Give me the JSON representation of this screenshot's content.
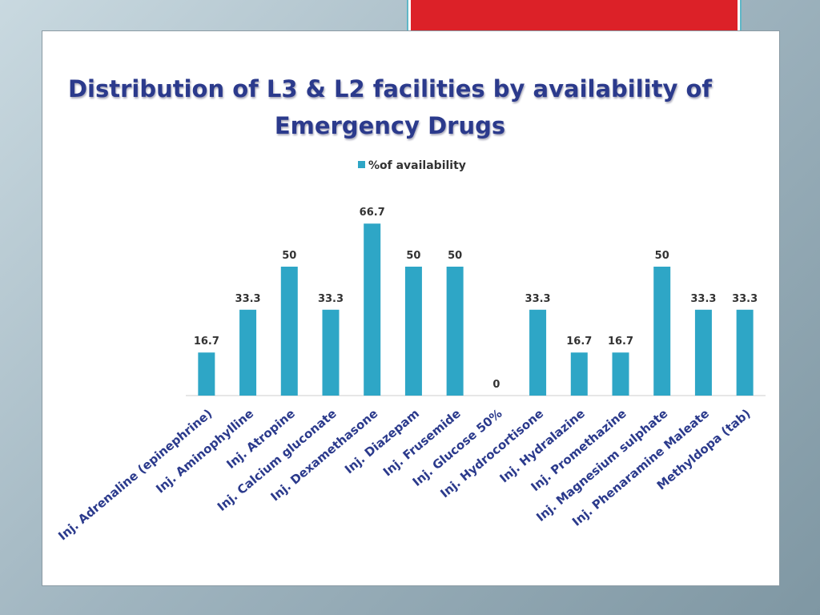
{
  "chart_data": {
    "type": "bar",
    "title": "Distribution of L3 & L2 facilities by availability of Emergency Drugs",
    "categories": [
      "Inj. Adrenaline (epinephrine)",
      "Inj. Aminophylline",
      "Inj. Atropine",
      "Inj. Calcium gluconate",
      "Inj. Dexamethasone",
      "Inj. Diazepam",
      "Inj. Frusemide",
      "Inj. Glucose 50%",
      "Inj. Hydrocortisone",
      "Inj. Hydralazine",
      "Inj. Promethazine",
      "Inj. Magnesium sulphate",
      "Inj. Phenaramine Maleate",
      "Methyldopa (tab)"
    ],
    "series": [
      {
        "name": "%of availability",
        "color": "#2ea6c6",
        "values": [
          16.7,
          33.3,
          50,
          33.3,
          66.7,
          50,
          50,
          0,
          33.3,
          16.7,
          16.7,
          50,
          33.3,
          33.3
        ]
      }
    ],
    "legend": "top"
  }
}
